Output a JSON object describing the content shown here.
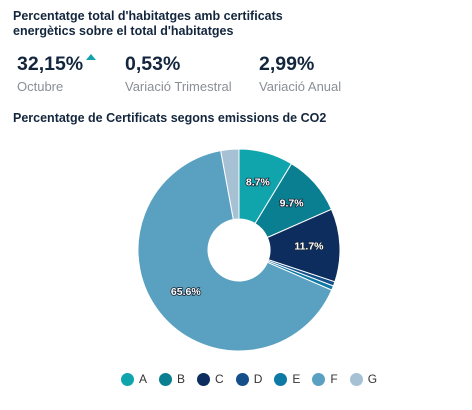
{
  "header": {
    "title": "Percentatge total d'habitatges amb certificats energètics sobre el total d'habitatges"
  },
  "kpis": [
    {
      "value": "32,15%",
      "label": "Octubre",
      "trend": "up"
    },
    {
      "value": "0,53%",
      "label": "Variació Trimestral"
    },
    {
      "value": "2,99%",
      "label": "Variació Anual"
    }
  ],
  "colors": {
    "accent": "#14a3ad",
    "text": "#13263d"
  },
  "chart_data": {
    "type": "pie",
    "variant": "donut",
    "title": "Percentatge de Certificats segons emissions de CO2",
    "categories": [
      "A",
      "B",
      "C",
      "D",
      "E",
      "F",
      "G"
    ],
    "values": [
      8.7,
      9.7,
      11.7,
      0.7,
      0.7,
      65.6,
      2.9
    ],
    "labels": [
      "8.7%",
      "9.7%",
      "11.7%",
      "",
      "",
      "65.6%",
      ""
    ],
    "colors": [
      "#10a5ad",
      "#0a7f91",
      "#0c2d5e",
      "#154f8a",
      "#0f79a6",
      "#5aa1c1",
      "#a6c1d4"
    ],
    "legend_position": "bottom"
  }
}
